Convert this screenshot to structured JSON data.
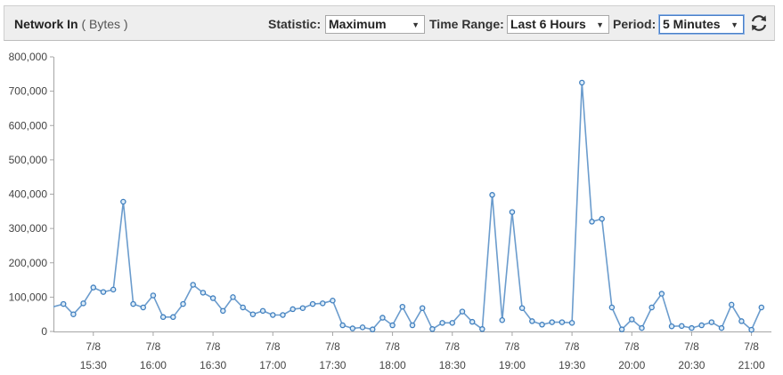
{
  "header": {
    "metric_name": "Network In",
    "metric_unit": "( Bytes )",
    "statistic_label": "Statistic:",
    "statistic_value": "Maximum",
    "time_range_label": "Time Range:",
    "time_range_value": "Last 6 Hours",
    "period_label": "Period:",
    "period_value": "5 Minutes"
  },
  "icons": {
    "refresh": "refresh-icon",
    "dropdown": "chevron-down-icon"
  },
  "colors": {
    "line": "#6b9ccd",
    "marker_stroke": "#3f7fbf",
    "marker_fill": "#dcebf7",
    "axis": "#a6a6a6",
    "grid": "#eeeeee"
  },
  "chart_data": {
    "type": "line",
    "title": "Network In ( Bytes )",
    "xlabel": "",
    "ylabel": "",
    "ylim": [
      0,
      800000
    ],
    "y_ticks": [
      "0",
      "100,000",
      "200,000",
      "300,000",
      "400,000",
      "500,000",
      "600,000",
      "700,000",
      "800,000"
    ],
    "x_ticks": [
      {
        "date": "7/8",
        "time": "15:30"
      },
      {
        "date": "7/8",
        "time": "16:00"
      },
      {
        "date": "7/8",
        "time": "16:30"
      },
      {
        "date": "7/8",
        "time": "17:00"
      },
      {
        "date": "7/8",
        "time": "17:30"
      },
      {
        "date": "7/8",
        "time": "18:00"
      },
      {
        "date": "7/8",
        "time": "18:30"
      },
      {
        "date": "7/8",
        "time": "19:00"
      },
      {
        "date": "7/8",
        "time": "19:30"
      },
      {
        "date": "7/8",
        "time": "20:00"
      },
      {
        "date": "7/8",
        "time": "20:30"
      },
      {
        "date": "7/8",
        "time": "21:00"
      }
    ],
    "x_start": "15:10",
    "x_end": "21:10",
    "grid": false,
    "series": [
      {
        "x": [
          "15:15",
          "15:20",
          "15:25",
          "15:30",
          "15:35",
          "15:40",
          "15:45",
          "15:50",
          "15:55",
          "16:00",
          "16:05",
          "16:10",
          "16:15",
          "16:20",
          "16:25",
          "16:30",
          "16:35",
          "16:40",
          "16:45",
          "16:50",
          "16:55",
          "17:00",
          "17:05",
          "17:10",
          "17:15",
          "17:20",
          "17:25",
          "17:30",
          "17:35",
          "17:40",
          "17:45",
          "17:50",
          "17:55",
          "18:00",
          "18:05",
          "18:10",
          "18:15",
          "18:20",
          "18:25",
          "18:30",
          "18:35",
          "18:40",
          "18:45",
          "18:50",
          "18:55",
          "19:00",
          "19:05",
          "19:10",
          "19:15",
          "19:20",
          "19:25",
          "19:30",
          "19:35",
          "19:40",
          "19:45",
          "19:50",
          "19:55",
          "20:00",
          "20:05",
          "20:10",
          "20:15",
          "20:20",
          "20:25",
          "20:30",
          "20:35",
          "20:40",
          "20:45",
          "20:50",
          "20:55",
          "21:00",
          "21:05"
        ],
        "values": [
          80000,
          50000,
          82000,
          128000,
          115000,
          122000,
          378000,
          80000,
          70000,
          105000,
          42000,
          42000,
          80000,
          136000,
          113000,
          97000,
          60000,
          100000,
          70000,
          50000,
          60000,
          48000,
          48000,
          65000,
          68000,
          80000,
          82000,
          90000,
          18000,
          9000,
          12000,
          6000,
          40000,
          18000,
          72000,
          18000,
          68000,
          7000,
          25000,
          25000,
          58000,
          28000,
          7000,
          398000,
          33000,
          348000,
          68000,
          30000,
          20000,
          27000,
          27000,
          25000,
          725000,
          320000,
          328000,
          70000,
          6000,
          35000,
          10000,
          70000,
          110000,
          15000,
          16000,
          10000,
          18000,
          27000,
          10000,
          78000,
          30000,
          5000,
          70000
        ]
      }
    ]
  }
}
